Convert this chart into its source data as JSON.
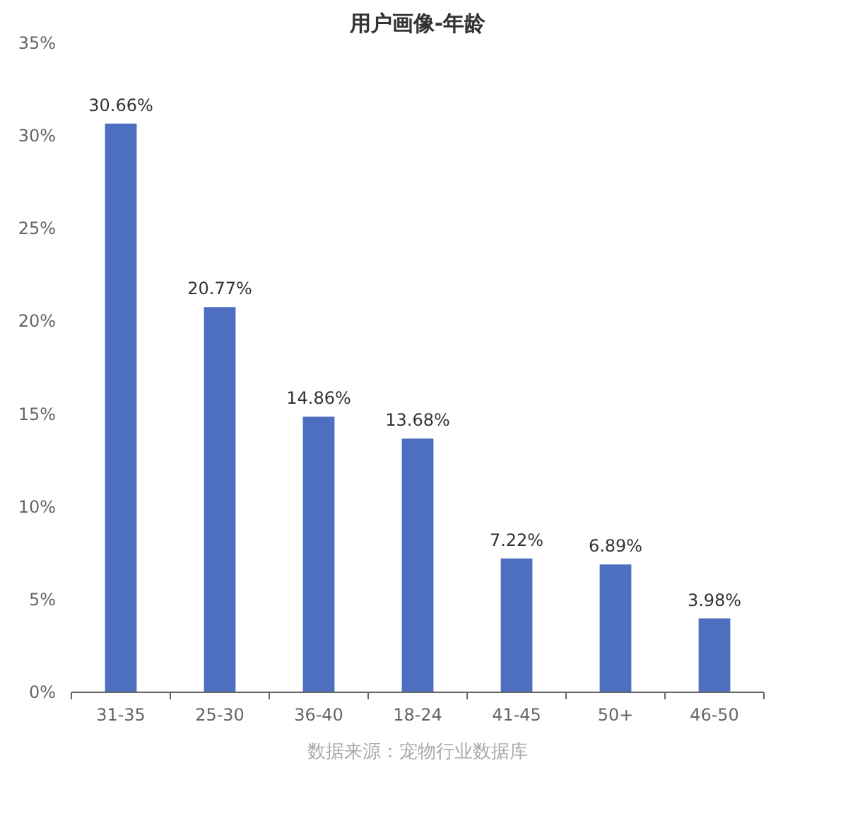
{
  "chart_data": {
    "type": "bar",
    "title": "用户画像-年龄",
    "categories": [
      "31-35",
      "25-30",
      "36-40",
      "18-24",
      "41-45",
      "50+",
      "46-50"
    ],
    "values": [
      30.66,
      20.77,
      14.86,
      13.68,
      7.22,
      6.89,
      3.98
    ],
    "value_labels": [
      "30.66%",
      "20.77%",
      "14.86%",
      "13.68%",
      "7.22%",
      "6.89%",
      "3.98%"
    ],
    "color": "#4e6ec0",
    "ylim": [
      0,
      35
    ],
    "yticks": [
      {
        "value": 0,
        "label": "0%"
      },
      {
        "value": 5,
        "label": "5%"
      },
      {
        "value": 10,
        "label": "10%"
      },
      {
        "value": 15,
        "label": "15%"
      },
      {
        "value": 20,
        "label": "20%"
      },
      {
        "value": 25,
        "label": "25%"
      },
      {
        "value": 30,
        "label": "30%"
      },
      {
        "value": 35,
        "label": "35%"
      }
    ],
    "grid": false,
    "annotations": [
      "数据来源：宠物行业数据库"
    ]
  }
}
